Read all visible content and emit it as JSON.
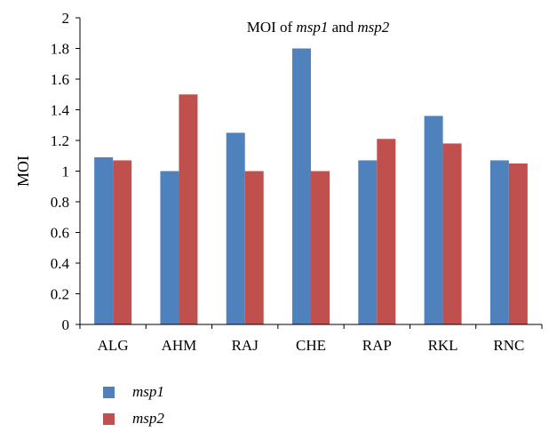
{
  "chart_data": {
    "type": "bar",
    "title": {
      "prefix": "MOI of ",
      "gene1": "msp1",
      "middle": " and ",
      "gene2": "msp2"
    },
    "xlabel": "",
    "ylabel": "MOI",
    "ylim": [
      0,
      2
    ],
    "yticks": [
      "0",
      "0.2",
      "0.4",
      "0.6",
      "0.8",
      "1",
      "1.2",
      "1.4",
      "1.6",
      "1.8",
      "2"
    ],
    "grid": false,
    "legend_position": "bottom-left",
    "categories": [
      "ALG",
      "AHM",
      "RAJ",
      "CHE",
      "RAP",
      "RKL",
      "RNC"
    ],
    "series": [
      {
        "name": "msp1",
        "color": "#4F81BD",
        "values": [
          1.09,
          1.0,
          1.25,
          1.8,
          1.07,
          1.36,
          1.07
        ]
      },
      {
        "name": "msp2",
        "color": "#C0504D",
        "values": [
          1.07,
          1.5,
          1.0,
          1.0,
          1.21,
          1.18,
          1.05
        ]
      }
    ]
  }
}
